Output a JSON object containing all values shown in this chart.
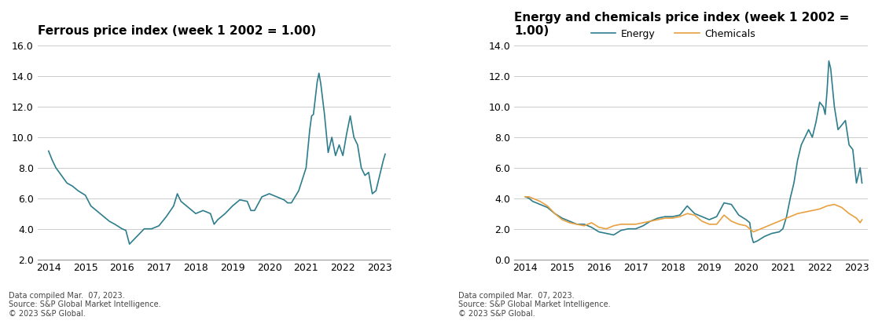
{
  "ferrous_title": "Ferrous price index (week 1 2002 = 1.00)",
  "energy_chem_title": "Energy and chemicals price index (week 1 2002 =\n1.00)",
  "ferrous_color": "#2e7d8c",
  "energy_color": "#2e7d8c",
  "chemicals_color": "#e8a040",
  "ferrous_ylim": [
    2.0,
    16.0
  ],
  "energy_ylim": [
    0.0,
    14.0
  ],
  "ferrous_yticks": [
    2.0,
    4.0,
    6.0,
    8.0,
    10.0,
    12.0,
    14.0,
    16.0
  ],
  "energy_yticks": [
    0.0,
    2.0,
    4.0,
    6.0,
    8.0,
    10.0,
    12.0,
    14.0
  ],
  "xtick_years": [
    2014,
    2015,
    2016,
    2017,
    2018,
    2019,
    2020,
    2021,
    2022,
    2023
  ],
  "footnote": "Data compiled Mar.  07, 2023.\nSource: S&P Global Market Intelligence.\n© 2023 S&P Global.",
  "legend_energy": "Energy",
  "legend_chemicals": "Chemicals",
  "line_width": 1.2,
  "ferrous_x": [
    2014.0,
    2014.1,
    2014.2,
    2014.35,
    2014.5,
    2014.65,
    2014.8,
    2015.0,
    2015.15,
    2015.3,
    2015.5,
    2015.65,
    2015.8,
    2016.0,
    2016.1,
    2016.2,
    2016.4,
    2016.6,
    2016.8,
    2017.0,
    2017.2,
    2017.4,
    2017.5,
    2017.6,
    2017.8,
    2018.0,
    2018.2,
    2018.4,
    2018.5,
    2018.6,
    2018.8,
    2019.0,
    2019.2,
    2019.4,
    2019.5,
    2019.6,
    2019.8,
    2020.0,
    2020.2,
    2020.4,
    2020.5,
    2020.6,
    2020.8,
    2021.0,
    2021.1,
    2021.15,
    2021.2,
    2021.3,
    2021.35,
    2021.4,
    2021.5,
    2021.6,
    2021.7,
    2021.8,
    2021.9,
    2022.0,
    2022.1,
    2022.2,
    2022.3,
    2022.4,
    2022.5,
    2022.6,
    2022.7,
    2022.8,
    2022.9,
    2023.0,
    2023.1,
    2023.15
  ],
  "ferrous_y": [
    9.1,
    8.5,
    8.0,
    7.5,
    7.0,
    6.8,
    6.5,
    6.2,
    5.5,
    5.2,
    4.8,
    4.5,
    4.3,
    4.0,
    3.9,
    3.0,
    3.5,
    4.0,
    4.0,
    4.2,
    4.8,
    5.5,
    6.3,
    5.8,
    5.4,
    5.0,
    5.2,
    5.0,
    4.3,
    4.6,
    5.0,
    5.5,
    5.9,
    5.8,
    5.2,
    5.2,
    6.1,
    6.3,
    6.1,
    5.9,
    5.7,
    5.7,
    6.5,
    8.0,
    10.5,
    11.4,
    11.5,
    13.6,
    14.2,
    13.5,
    11.5,
    9.0,
    10.0,
    8.8,
    9.5,
    8.8,
    10.2,
    11.4,
    10.0,
    9.5,
    8.0,
    7.5,
    7.7,
    6.3,
    6.5,
    7.5,
    8.5,
    8.9
  ],
  "energy_x": [
    2014.0,
    2014.1,
    2014.2,
    2014.4,
    2014.6,
    2014.8,
    2015.0,
    2015.2,
    2015.4,
    2015.6,
    2015.8,
    2016.0,
    2016.2,
    2016.4,
    2016.6,
    2016.8,
    2017.0,
    2017.2,
    2017.4,
    2017.6,
    2017.8,
    2018.0,
    2018.2,
    2018.4,
    2018.6,
    2018.8,
    2019.0,
    2019.2,
    2019.4,
    2019.6,
    2019.8,
    2020.0,
    2020.1,
    2020.15,
    2020.2,
    2020.3,
    2020.5,
    2020.7,
    2020.9,
    2021.0,
    2021.1,
    2021.2,
    2021.3,
    2021.4,
    2021.5,
    2021.6,
    2021.7,
    2021.8,
    2021.9,
    2022.0,
    2022.1,
    2022.15,
    2022.2,
    2022.25,
    2022.3,
    2022.4,
    2022.5,
    2022.6,
    2022.7,
    2022.8,
    2022.9,
    2023.0,
    2023.1,
    2023.15
  ],
  "energy_y": [
    4.1,
    4.0,
    3.8,
    3.6,
    3.4,
    3.0,
    2.7,
    2.5,
    2.3,
    2.3,
    2.1,
    1.8,
    1.7,
    1.6,
    1.9,
    2.0,
    2.0,
    2.2,
    2.5,
    2.7,
    2.8,
    2.8,
    2.9,
    3.5,
    3.0,
    2.8,
    2.6,
    2.8,
    3.7,
    3.6,
    2.9,
    2.6,
    2.4,
    1.5,
    1.1,
    1.2,
    1.5,
    1.7,
    1.8,
    2.0,
    2.8,
    4.0,
    5.0,
    6.5,
    7.5,
    8.0,
    8.5,
    8.0,
    9.0,
    10.3,
    10.0,
    9.5,
    11.0,
    13.0,
    12.5,
    10.0,
    8.5,
    8.8,
    9.1,
    7.5,
    7.2,
    5.0,
    6.0,
    5.0
  ],
  "chemicals_x": [
    2014.0,
    2014.1,
    2014.2,
    2014.4,
    2014.6,
    2014.8,
    2015.0,
    2015.2,
    2015.4,
    2015.6,
    2015.8,
    2016.0,
    2016.2,
    2016.4,
    2016.6,
    2016.8,
    2017.0,
    2017.2,
    2017.4,
    2017.6,
    2017.8,
    2018.0,
    2018.2,
    2018.4,
    2018.6,
    2018.8,
    2019.0,
    2019.2,
    2019.4,
    2019.6,
    2019.8,
    2020.0,
    2020.1,
    2020.2,
    2020.4,
    2020.6,
    2020.8,
    2021.0,
    2021.2,
    2021.4,
    2021.6,
    2021.8,
    2022.0,
    2022.2,
    2022.4,
    2022.6,
    2022.8,
    2023.0,
    2023.1,
    2023.15
  ],
  "chemicals_y": [
    4.1,
    4.1,
    4.0,
    3.8,
    3.5,
    3.0,
    2.6,
    2.4,
    2.3,
    2.2,
    2.4,
    2.1,
    2.0,
    2.2,
    2.3,
    2.3,
    2.3,
    2.4,
    2.5,
    2.6,
    2.7,
    2.7,
    2.8,
    3.0,
    2.9,
    2.5,
    2.3,
    2.3,
    2.9,
    2.5,
    2.3,
    2.2,
    2.0,
    1.8,
    2.0,
    2.2,
    2.4,
    2.6,
    2.8,
    3.0,
    3.1,
    3.2,
    3.3,
    3.5,
    3.6,
    3.4,
    3.0,
    2.7,
    2.4,
    2.6
  ]
}
